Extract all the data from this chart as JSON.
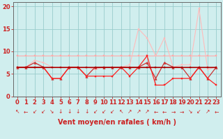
{
  "title": "",
  "xlabel": "Vent moyen/en rafales ( km/h )",
  "x": [
    0,
    1,
    2,
    3,
    4,
    5,
    6,
    7,
    8,
    9,
    10,
    11,
    12,
    13,
    14,
    15,
    16,
    17,
    18,
    19,
    20,
    21,
    22,
    23
  ],
  "series": [
    {
      "color": "#ffaaaa",
      "lw": 0.8,
      "marker": "s",
      "ms": 2.0,
      "values": [
        9.0,
        9.0,
        9.0,
        9.0,
        9.0,
        9.0,
        9.0,
        9.0,
        9.0,
        9.0,
        9.0,
        9.0,
        9.0,
        9.0,
        9.0,
        9.0,
        9.0,
        9.0,
        9.0,
        9.0,
        9.0,
        9.0,
        9.0,
        9.0
      ]
    },
    {
      "color": "#ffbbbb",
      "lw": 0.8,
      "marker": "s",
      "ms": 2.0,
      "values": [
        6.5,
        6.5,
        8.0,
        7.5,
        6.5,
        6.5,
        6.5,
        6.5,
        6.5,
        6.0,
        6.5,
        6.5,
        6.5,
        7.0,
        15.0,
        13.0,
        9.0,
        13.0,
        6.5,
        7.0,
        7.0,
        19.5,
        6.0,
        6.5
      ]
    },
    {
      "color": "#cc3333",
      "lw": 0.9,
      "marker": "^",
      "ms": 2.5,
      "values": [
        6.5,
        6.5,
        7.5,
        6.5,
        4.0,
        4.0,
        6.5,
        6.5,
        4.5,
        6.5,
        6.5,
        6.5,
        6.5,
        6.5,
        6.5,
        7.5,
        4.0,
        7.5,
        6.5,
        6.5,
        4.0,
        6.5,
        4.0,
        6.5
      ]
    },
    {
      "color": "#ff2222",
      "lw": 0.9,
      "marker": "s",
      "ms": 2.0,
      "values": [
        6.5,
        6.5,
        6.5,
        6.5,
        4.0,
        4.0,
        6.5,
        6.5,
        4.5,
        4.5,
        4.5,
        4.5,
        6.5,
        4.5,
        6.5,
        9.0,
        2.5,
        2.5,
        4.0,
        4.0,
        4.0,
        6.5,
        4.0,
        2.5
      ]
    },
    {
      "color": "#aa0000",
      "lw": 1.2,
      "marker": "s",
      "ms": 2.0,
      "values": [
        6.5,
        6.5,
        6.5,
        6.5,
        6.5,
        6.5,
        6.5,
        6.5,
        6.5,
        6.5,
        6.5,
        6.5,
        6.5,
        6.5,
        6.5,
        6.5,
        6.5,
        6.5,
        6.5,
        6.5,
        6.5,
        6.5,
        6.5,
        6.5
      ]
    }
  ],
  "ylim": [
    0,
    21
  ],
  "yticks": [
    0,
    5,
    10,
    15,
    20
  ],
  "xticks": [
    0,
    1,
    2,
    3,
    4,
    5,
    6,
    7,
    8,
    9,
    10,
    11,
    12,
    13,
    14,
    15,
    16,
    17,
    18,
    19,
    20,
    21,
    22,
    23
  ],
  "bg_color": "#d0eeee",
  "grid_color": "#99cccc",
  "axis_color": "#666666",
  "tick_color": "#cc2222",
  "xlabel_color": "#cc2222",
  "xlabel_fontsize": 7,
  "tick_fontsize": 6,
  "wind_arrows": [
    "↖",
    "←",
    "↙",
    "↙",
    "↘",
    "↓",
    "↓",
    "↓",
    "↓",
    "↙",
    "↙",
    "↙",
    "↖",
    "↗",
    "↗",
    "↗",
    "←",
    "←",
    "→",
    "→",
    "↘",
    "↙",
    "↗",
    "←"
  ],
  "arrow_color": "#cc2222",
  "arrow_fontsize": 5.5
}
